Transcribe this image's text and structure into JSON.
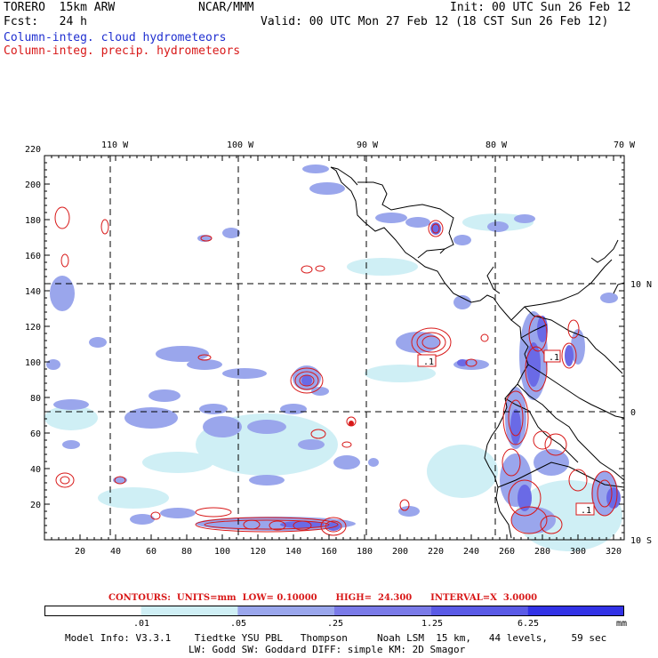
{
  "header": {
    "model": "TORERO  15km ARW",
    "org": "NCAR/MMM",
    "init": "Init: 00 UTC Sun 26 Feb 12",
    "fcst": "Fcst:   24 h",
    "valid": "Valid: 00 UTC Mon 27 Feb 12 (18 CST Sun 26 Feb 12)",
    "field1": "Column-integ. cloud hydrometeors",
    "field2": "Column-integ. precip. hydrometeors"
  },
  "map": {
    "lon_labels": [
      "110 W",
      "100 W",
      "90 W",
      "80 W",
      "70 W"
    ],
    "lat_labels": [
      "10 N",
      "0",
      "10 S"
    ],
    "y_ticks": [
      "220",
      "200",
      "180",
      "160",
      "140",
      "120",
      "100",
      "80",
      "60",
      "40",
      "20"
    ],
    "x_ticks": [
      "20",
      "40",
      "60",
      "80",
      "100",
      "120",
      "140",
      "160",
      "180",
      "200",
      "220",
      "240",
      "260",
      "280",
      "300",
      "320"
    ],
    "contour_box_labels": [
      ".1",
      ".1",
      ".1"
    ],
    "colors": {
      "cloud_light": "#cfeff5",
      "cloud_mid": "#9aa6ec",
      "cloud_dark": "#6a6ae6",
      "precip": "#d81818",
      "coast": "#000000"
    }
  },
  "colorbar": {
    "labels": [
      ".01",
      ".05",
      ".25",
      "1.25",
      "6.25"
    ],
    "unit": "mm",
    "colors": [
      "#ffffff",
      "#cfeff5",
      "#b7c8f2",
      "#9aa6ec",
      "#7a7ae8",
      "#5a5ae6",
      "#3232e6"
    ]
  },
  "contours_text": "CONTOURS:  UNITS=mm  LOW= 0.10000      HIGH=  24.300      INTERVAL=X  3.0000",
  "footer": {
    "line1": "Model Info: V3.3.1    Tiedtke YSU PBL   Thompson     Noah LSM  15 km,   44 levels,    59 sec",
    "line2": "LW: Godd SW: Goddard DIFF: simple KM: 2D Smagor"
  }
}
